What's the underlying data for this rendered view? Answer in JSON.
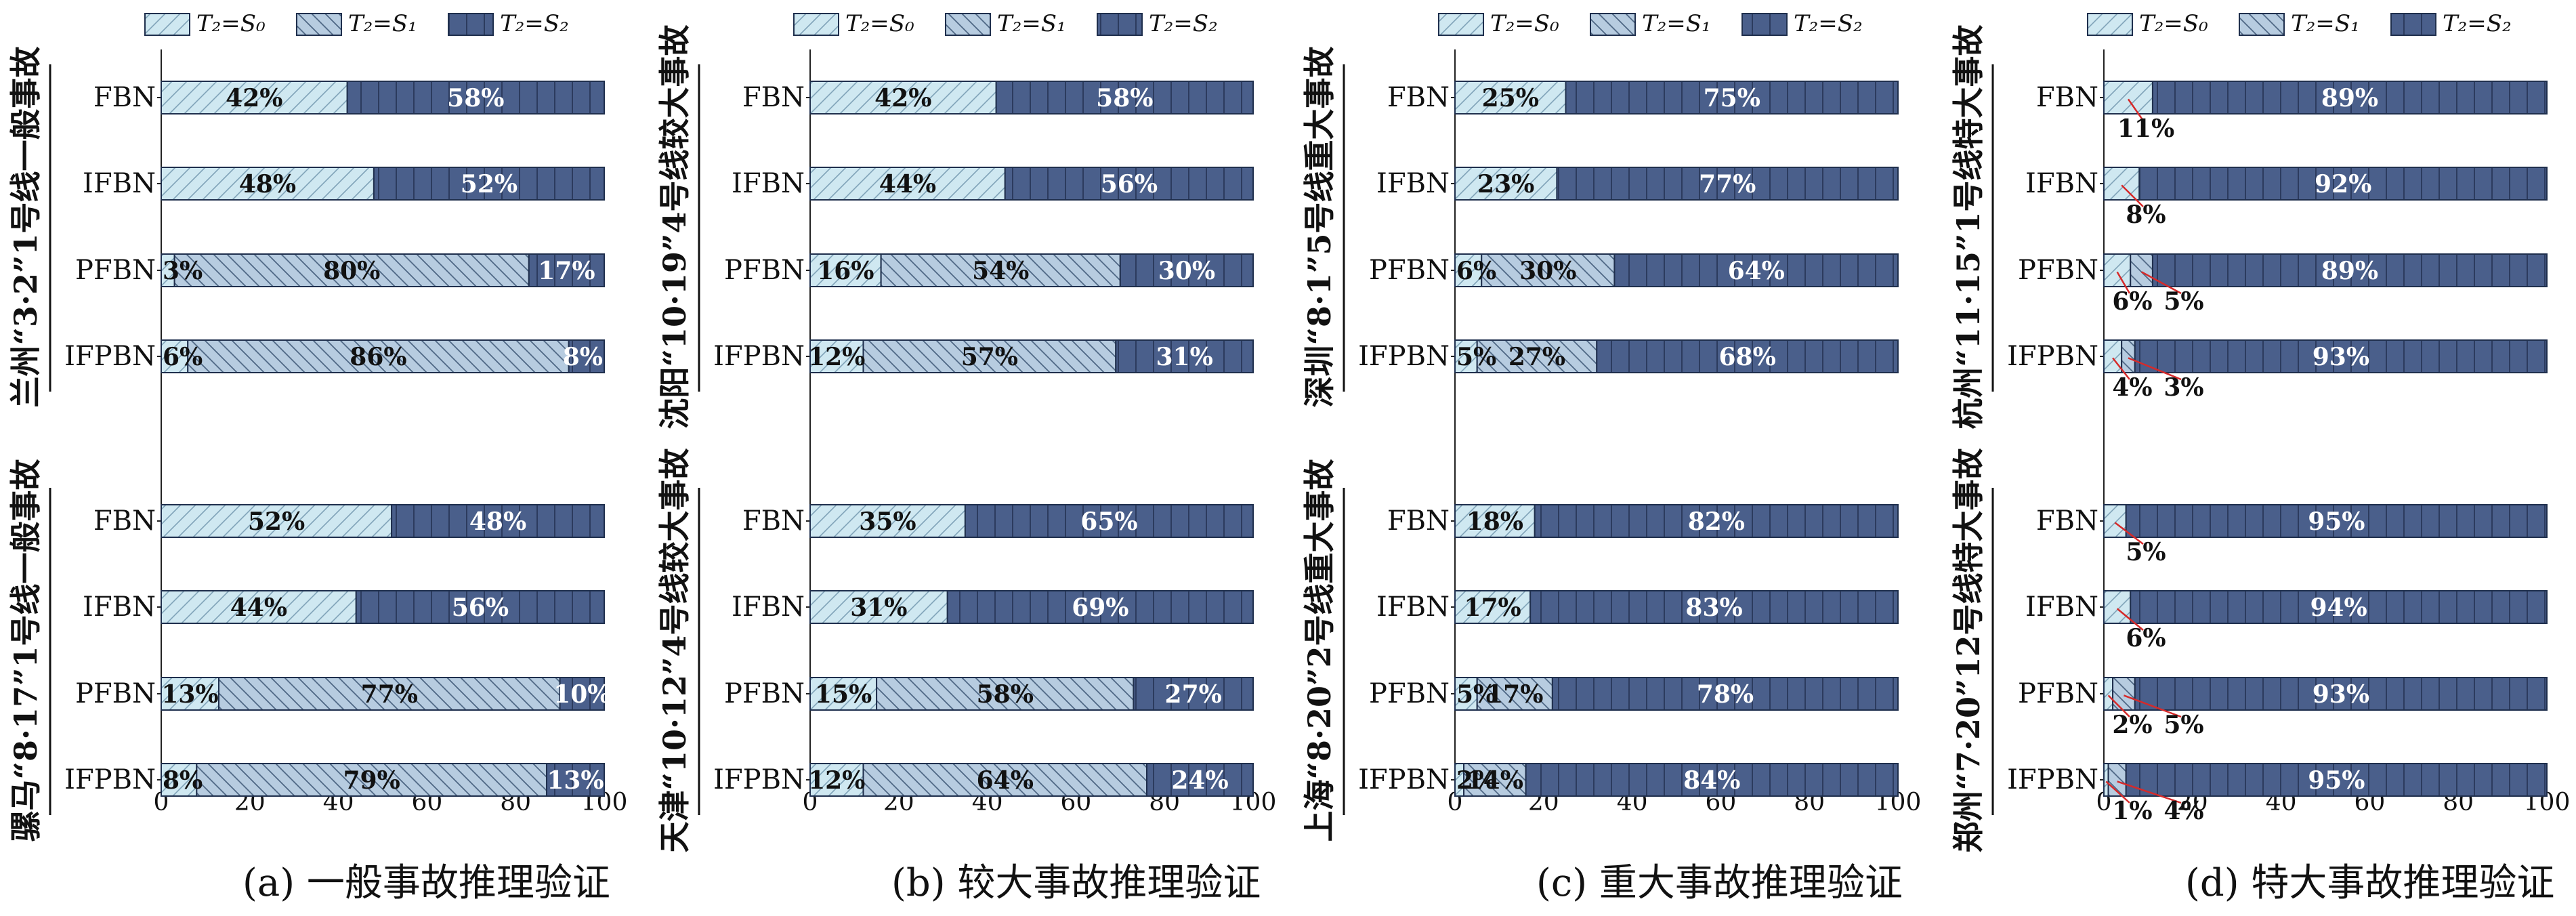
{
  "legend_symbols": [
    "T₂=S₀",
    "T₂=S₁",
    "T₂=S₂"
  ],
  "colors": {
    "s0_fill": "#cfe8f1",
    "s1_fill": "#b7cce0",
    "s2_fill": "#4a5f8b",
    "bar_stroke": "#1f2f4d",
    "leader": "#d62a2a"
  },
  "chart_data": [
    {
      "type": "bar",
      "orientation": "horizontal",
      "stacked": true,
      "caption": "(a) 一般事故推理验证",
      "xlim": [
        0,
        100
      ],
      "xticks": [
        "0",
        "20",
        "40",
        "60",
        "80",
        "100"
      ],
      "legend": [
        "T2=S0",
        "T2=S1",
        "T2=S2"
      ],
      "groups": [
        {
          "label": "兰州“3·2”1号线一般事故",
          "bars": [
            {
              "category": "FBN",
              "values": [
                42,
                0,
                58
              ],
              "labels": [
                "42%",
                "",
                "58%"
              ]
            },
            {
              "category": "IFBN",
              "values": [
                48,
                0,
                52
              ],
              "labels": [
                "48%",
                "",
                "52%"
              ]
            },
            {
              "category": "PFBN",
              "values": [
                3,
                80,
                17
              ],
              "labels": [
                "3%",
                "80%",
                "17%"
              ]
            },
            {
              "category": "IFPBN",
              "values": [
                6,
                86,
                8
              ],
              "labels": [
                "6%",
                "86%",
                "8%"
              ]
            }
          ]
        },
        {
          "label": "骡马“8·17”1号线一般事故",
          "bars": [
            {
              "category": "FBN",
              "values": [
                52,
                0,
                48
              ],
              "labels": [
                "52%",
                "",
                "48%"
              ]
            },
            {
              "category": "IFBN",
              "values": [
                44,
                0,
                56
              ],
              "labels": [
                "44%",
                "",
                "56%"
              ]
            },
            {
              "category": "PFBN",
              "values": [
                13,
                77,
                10
              ],
              "labels": [
                "13%",
                "77%",
                "10%"
              ]
            },
            {
              "category": "IFPBN",
              "values": [
                8,
                79,
                13
              ],
              "labels": [
                "8%",
                "79%",
                "13%"
              ]
            }
          ]
        }
      ]
    },
    {
      "type": "bar",
      "orientation": "horizontal",
      "stacked": true,
      "caption": "(b) 较大事故推理验证",
      "xlim": [
        0,
        100
      ],
      "xticks": [
        "0",
        "20",
        "40",
        "60",
        "80",
        "100"
      ],
      "legend": [
        "T2=S0",
        "T2=S1",
        "T2=S2"
      ],
      "groups": [
        {
          "label": "沈阳“10·19”4号线较大事故",
          "bars": [
            {
              "category": "FBN",
              "values": [
                42,
                0,
                58
              ],
              "labels": [
                "42%",
                "",
                "58%"
              ]
            },
            {
              "category": "IFBN",
              "values": [
                44,
                0,
                56
              ],
              "labels": [
                "44%",
                "",
                "56%"
              ]
            },
            {
              "category": "PFBN",
              "values": [
                16,
                54,
                30
              ],
              "labels": [
                "16%",
                "54%",
                "30%"
              ]
            },
            {
              "category": "IFPBN",
              "values": [
                12,
                57,
                31
              ],
              "labels": [
                "12%",
                "57%",
                "31%"
              ]
            }
          ]
        },
        {
          "label": "天津“10·12”4号线较大事故",
          "bars": [
            {
              "category": "FBN",
              "values": [
                35,
                0,
                65
              ],
              "labels": [
                "35%",
                "",
                "65%"
              ]
            },
            {
              "category": "IFBN",
              "values": [
                31,
                0,
                69
              ],
              "labels": [
                "31%",
                "",
                "69%"
              ]
            },
            {
              "category": "PFBN",
              "values": [
                15,
                58,
                27
              ],
              "labels": [
                "15%",
                "58%",
                "27%"
              ]
            },
            {
              "category": "IFPBN",
              "values": [
                12,
                64,
                24
              ],
              "labels": [
                "12%",
                "64%",
                "24%"
              ]
            }
          ]
        }
      ]
    },
    {
      "type": "bar",
      "orientation": "horizontal",
      "stacked": true,
      "caption": "(c) 重大事故推理验证",
      "xlim": [
        0,
        100
      ],
      "xticks": [
        "0",
        "20",
        "40",
        "60",
        "80",
        "100"
      ],
      "legend": [
        "T2=S0",
        "T2=S1",
        "T2=S2"
      ],
      "groups": [
        {
          "label": "深圳“8·1”5号线重大事故",
          "bars": [
            {
              "category": "FBN",
              "values": [
                25,
                0,
                75
              ],
              "labels": [
                "25%",
                "",
                "75%"
              ]
            },
            {
              "category": "IFBN",
              "values": [
                23,
                0,
                77
              ],
              "labels": [
                "23%",
                "",
                "77%"
              ]
            },
            {
              "category": "PFBN",
              "values": [
                6,
                30,
                64
              ],
              "labels": [
                "6%",
                "30%",
                "64%"
              ]
            },
            {
              "category": "IFPBN",
              "values": [
                5,
                27,
                68
              ],
              "labels": [
                "5%",
                "27%",
                "68%"
              ]
            }
          ]
        },
        {
          "label": "上海“8·20”2号线重大事故",
          "bars": [
            {
              "category": "FBN",
              "values": [
                18,
                0,
                82
              ],
              "labels": [
                "18%",
                "",
                "82%"
              ]
            },
            {
              "category": "IFBN",
              "values": [
                17,
                0,
                83
              ],
              "labels": [
                "17%",
                "",
                "83%"
              ]
            },
            {
              "category": "PFBN",
              "values": [
                5,
                17,
                78
              ],
              "labels": [
                "5%",
                "17%",
                "78%"
              ]
            },
            {
              "category": "IFPBN",
              "values": [
                2,
                14,
                84
              ],
              "labels": [
                "2%",
                "14%",
                "84%"
              ]
            }
          ]
        }
      ]
    },
    {
      "type": "bar",
      "orientation": "horizontal",
      "stacked": true,
      "caption": "(d) 特大事故推理验证",
      "xlim": [
        0,
        100
      ],
      "xticks": [
        "0",
        "20",
        "40",
        "60",
        "80",
        "100"
      ],
      "legend": [
        "T2=S0",
        "T2=S1",
        "T2=S2"
      ],
      "groups": [
        {
          "label": "杭州“11·15”1号线特大事故",
          "bars": [
            {
              "category": "FBN",
              "values": [
                11,
                0,
                89
              ],
              "labels": [
                "11%",
                "",
                "89%"
              ]
            },
            {
              "category": "IFBN",
              "values": [
                8,
                0,
                92
              ],
              "labels": [
                "8%",
                "",
                "92%"
              ]
            },
            {
              "category": "PFBN",
              "values": [
                6,
                5,
                89
              ],
              "labels": [
                "6%",
                "5%",
                "89%"
              ]
            },
            {
              "category": "IFPBN",
              "values": [
                4,
                3,
                93
              ],
              "labels": [
                "4%",
                "3%",
                "93%"
              ]
            }
          ]
        },
        {
          "label": "郑州“7·20”12号线特大事故",
          "bars": [
            {
              "category": "FBN",
              "values": [
                5,
                0,
                95
              ],
              "labels": [
                "5%",
                "",
                "95%"
              ]
            },
            {
              "category": "IFBN",
              "values": [
                6,
                0,
                94
              ],
              "labels": [
                "6%",
                "",
                "94%"
              ]
            },
            {
              "category": "PFBN",
              "values": [
                2,
                5,
                93
              ],
              "labels": [
                "2%",
                "5%",
                "93%"
              ]
            },
            {
              "category": "IFPBN",
              "values": [
                1,
                4,
                95
              ],
              "labels": [
                "1%",
                "4%",
                "95%"
              ]
            }
          ]
        }
      ]
    }
  ]
}
